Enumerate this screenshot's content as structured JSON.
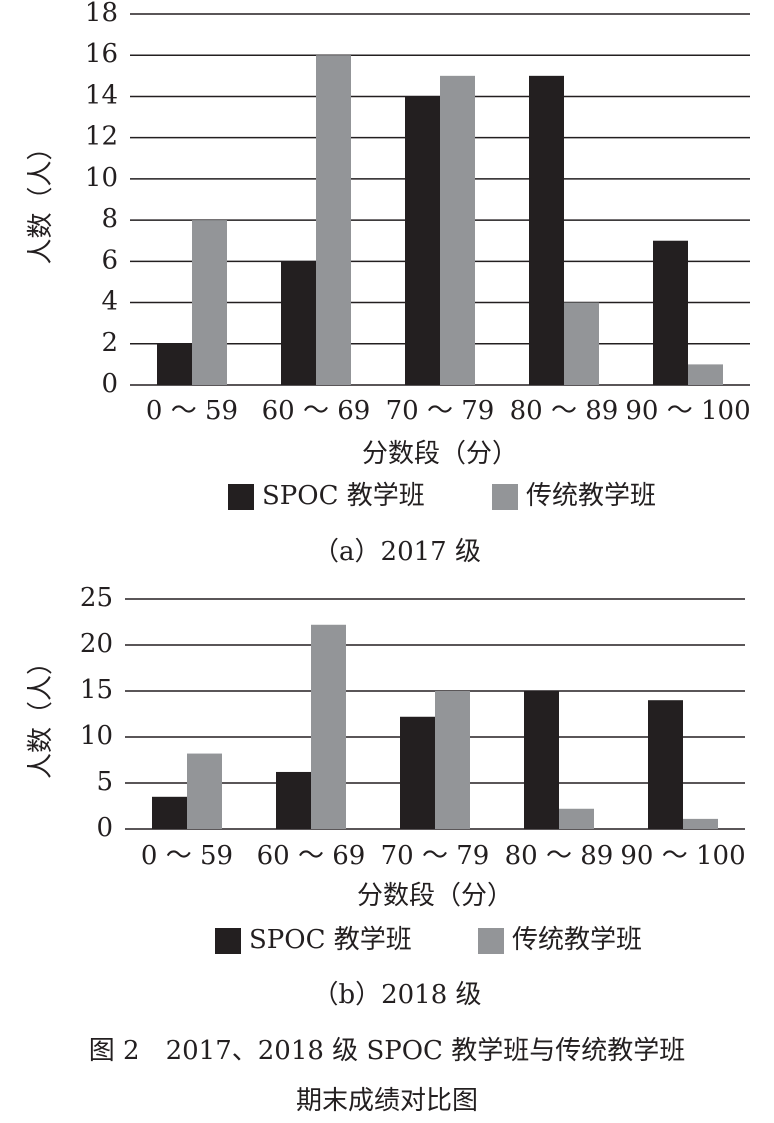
{
  "chart_data": [
    {
      "type": "bar",
      "title": "（a）2017 级",
      "x_label": "分数段（分）",
      "y_label": "人数（人）",
      "categories": [
        "0 ～ 59",
        "60 ～ 69",
        "70 ～ 79",
        "80 ～ 89",
        "90 ～ 100"
      ],
      "series": [
        {
          "name": "SPOC 教学班",
          "color": "#231f20",
          "values": [
            2,
            6,
            14,
            15,
            7
          ]
        },
        {
          "name": "传统教学班",
          "color": "#939598",
          "values": [
            8,
            16,
            15,
            4,
            1
          ]
        }
      ],
      "ylim": [
        0,
        18
      ],
      "yticks": [
        0,
        2,
        4,
        6,
        8,
        10,
        12,
        14,
        16,
        18
      ],
      "grid": true,
      "legend": "bottom"
    },
    {
      "type": "bar",
      "title": "（b）2018 级",
      "x_label": "分数段（分）",
      "y_label": "人数（人）",
      "categories": [
        "0 ～ 59",
        "60 ～ 69",
        "70 ～ 79",
        "80 ～ 89",
        "90 ～ 100"
      ],
      "series": [
        {
          "name": "SPOC 教学班",
          "color": "#231f20",
          "values": [
            3.5,
            6.2,
            12.2,
            15,
            14
          ]
        },
        {
          "name": "传统教学班",
          "color": "#939598",
          "values": [
            8.2,
            22.2,
            15,
            2.2,
            1.1
          ]
        }
      ],
      "ylim": [
        0,
        25
      ],
      "yticks": [
        0,
        5,
        10,
        15,
        20,
        25
      ],
      "grid": true,
      "legend": "bottom"
    }
  ],
  "caption": [
    "图 2　2017、2018 级 SPOC 教学班与传统教学班",
    "期末成绩对比图"
  ]
}
